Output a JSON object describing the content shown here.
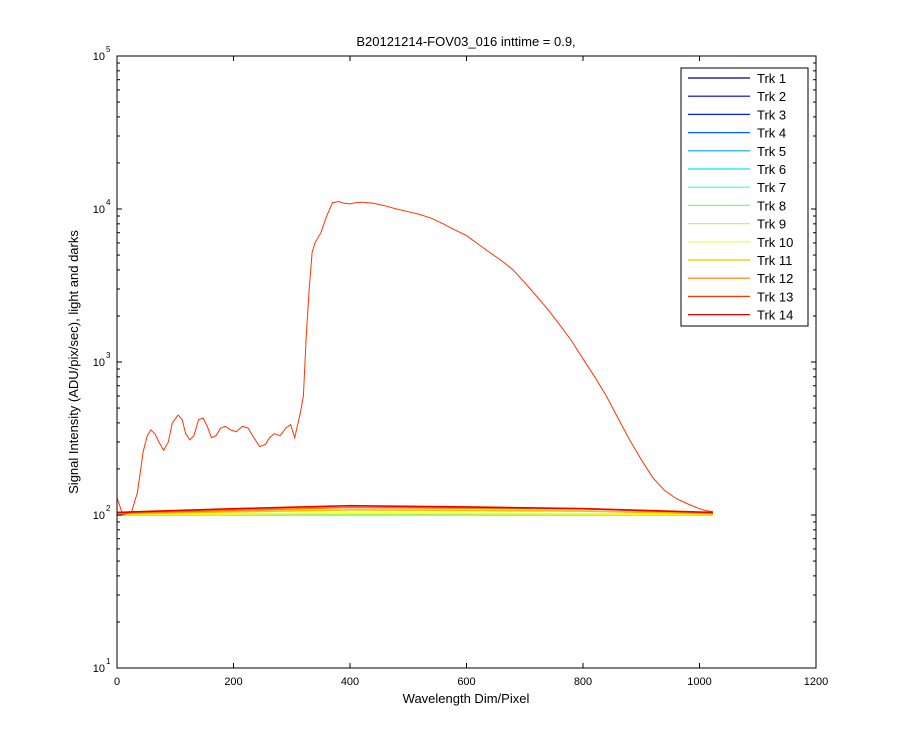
{
  "chart_data": {
    "type": "line",
    "title": "B20121214-FOV03_016 inttime = 0.9,",
    "xlabel": "Wavelength Dim/Pixel",
    "ylabel": "Signal Intensity (ADU/pix/sec), light and darks",
    "xlim": [
      0,
      1200
    ],
    "ylim": [
      10,
      100000
    ],
    "yscale": "log",
    "xticks": [
      0,
      200,
      400,
      600,
      800,
      1000,
      1200
    ],
    "yticks": [
      {
        "base": "10",
        "exp": "1",
        "value": 10
      },
      {
        "base": "10",
        "exp": "2",
        "value": 100
      },
      {
        "base": "10",
        "exp": "3",
        "value": 1000
      },
      {
        "base": "10",
        "exp": "4",
        "value": 10000
      },
      {
        "base": "10",
        "exp": "5",
        "value": 100000
      }
    ],
    "legend_position": "top-right",
    "grid": false,
    "series": [
      {
        "name": "Trk 1",
        "color": "#00008F",
        "points": [
          [
            0,
            100
          ],
          [
            1023,
            100
          ]
        ]
      },
      {
        "name": "Trk 2",
        "color": "#0000D4",
        "points": [
          [
            0,
            100
          ],
          [
            1023,
            100
          ]
        ]
      },
      {
        "name": "Trk 3",
        "color": "#0020FF",
        "points": [
          [
            0,
            100
          ],
          [
            1023,
            100
          ]
        ]
      },
      {
        "name": "Trk 4",
        "color": "#0064FF",
        "points": [
          [
            0,
            100
          ],
          [
            1023,
            100
          ]
        ]
      },
      {
        "name": "Trk 5",
        "color": "#00A8FF",
        "points": [
          [
            0,
            100
          ],
          [
            1023,
            100
          ]
        ]
      },
      {
        "name": "Trk 6",
        "color": "#00ECFF",
        "points": [
          [
            0,
            100
          ],
          [
            1023,
            100
          ]
        ]
      },
      {
        "name": "Trk 7",
        "color": "#30FFCF",
        "points": [
          [
            0,
            100
          ],
          [
            1023,
            100
          ]
        ]
      },
      {
        "name": "Trk 8",
        "color": "#74FF8B",
        "points": [
          [
            0,
            100
          ],
          [
            1023,
            100
          ]
        ]
      },
      {
        "name": "Trk 9",
        "color": "#B8FF47",
        "points": [
          [
            0,
            100
          ],
          [
            1023,
            100
          ]
        ]
      },
      {
        "name": "Trk 10",
        "color": "#FCFF03",
        "points": [
          [
            0,
            101
          ],
          [
            400,
            103
          ],
          [
            800,
            102
          ],
          [
            1023,
            101
          ]
        ]
      },
      {
        "name": "Trk 11",
        "color": "#FFBC00",
        "points": [
          [
            0,
            102
          ],
          [
            400,
            108
          ],
          [
            800,
            106
          ],
          [
            1023,
            102
          ]
        ]
      },
      {
        "name": "Trk 12",
        "color": "#FF7800",
        "points": [
          [
            0,
            103
          ],
          [
            400,
            112
          ],
          [
            800,
            110
          ],
          [
            1023,
            103
          ]
        ]
      },
      {
        "name": "Trk 13",
        "color": "#FF3400",
        "points": [
          [
            0,
            130
          ],
          [
            10,
            100
          ],
          [
            25,
            105
          ],
          [
            35,
            140
          ],
          [
            45,
            260
          ],
          [
            52,
            330
          ],
          [
            58,
            360
          ],
          [
            65,
            340
          ],
          [
            72,
            300
          ],
          [
            80,
            265
          ],
          [
            88,
            300
          ],
          [
            95,
            400
          ],
          [
            105,
            450
          ],
          [
            112,
            420
          ],
          [
            118,
            340
          ],
          [
            125,
            310
          ],
          [
            132,
            330
          ],
          [
            140,
            420
          ],
          [
            148,
            430
          ],
          [
            155,
            380
          ],
          [
            162,
            320
          ],
          [
            170,
            330
          ],
          [
            178,
            370
          ],
          [
            186,
            380
          ],
          [
            195,
            360
          ],
          [
            205,
            350
          ],
          [
            215,
            380
          ],
          [
            225,
            370
          ],
          [
            235,
            320
          ],
          [
            245,
            280
          ],
          [
            255,
            290
          ],
          [
            262,
            320
          ],
          [
            270,
            340
          ],
          [
            280,
            330
          ],
          [
            290,
            370
          ],
          [
            298,
            390
          ],
          [
            305,
            320
          ],
          [
            315,
            470
          ],
          [
            320,
            600
          ],
          [
            325,
            1500
          ],
          [
            330,
            3000
          ],
          [
            335,
            5200
          ],
          [
            340,
            6000
          ],
          [
            350,
            7000
          ],
          [
            360,
            9000
          ],
          [
            370,
            11000
          ],
          [
            380,
            11200
          ],
          [
            390,
            10900
          ],
          [
            400,
            10800
          ],
          [
            410,
            11000
          ],
          [
            420,
            11100
          ],
          [
            440,
            10900
          ],
          [
            460,
            10500
          ],
          [
            480,
            10000
          ],
          [
            500,
            9600
          ],
          [
            520,
            9200
          ],
          [
            540,
            8700
          ],
          [
            560,
            8000
          ],
          [
            580,
            7300
          ],
          [
            600,
            6700
          ],
          [
            620,
            5900
          ],
          [
            640,
            5200
          ],
          [
            660,
            4600
          ],
          [
            680,
            4000
          ],
          [
            700,
            3300
          ],
          [
            720,
            2700
          ],
          [
            740,
            2200
          ],
          [
            760,
            1750
          ],
          [
            780,
            1380
          ],
          [
            800,
            1050
          ],
          [
            820,
            800
          ],
          [
            840,
            600
          ],
          [
            860,
            430
          ],
          [
            880,
            310
          ],
          [
            900,
            230
          ],
          [
            920,
            175
          ],
          [
            940,
            145
          ],
          [
            960,
            128
          ],
          [
            980,
            118
          ],
          [
            1000,
            110
          ],
          [
            1010,
            107
          ],
          [
            1023,
            105
          ]
        ]
      },
      {
        "name": "Trk 14",
        "color": "#EF0000",
        "points": [
          [
            0,
            104
          ],
          [
            200,
            110
          ],
          [
            400,
            115
          ],
          [
            600,
            113
          ],
          [
            800,
            110
          ],
          [
            1023,
            104
          ]
        ]
      }
    ]
  }
}
